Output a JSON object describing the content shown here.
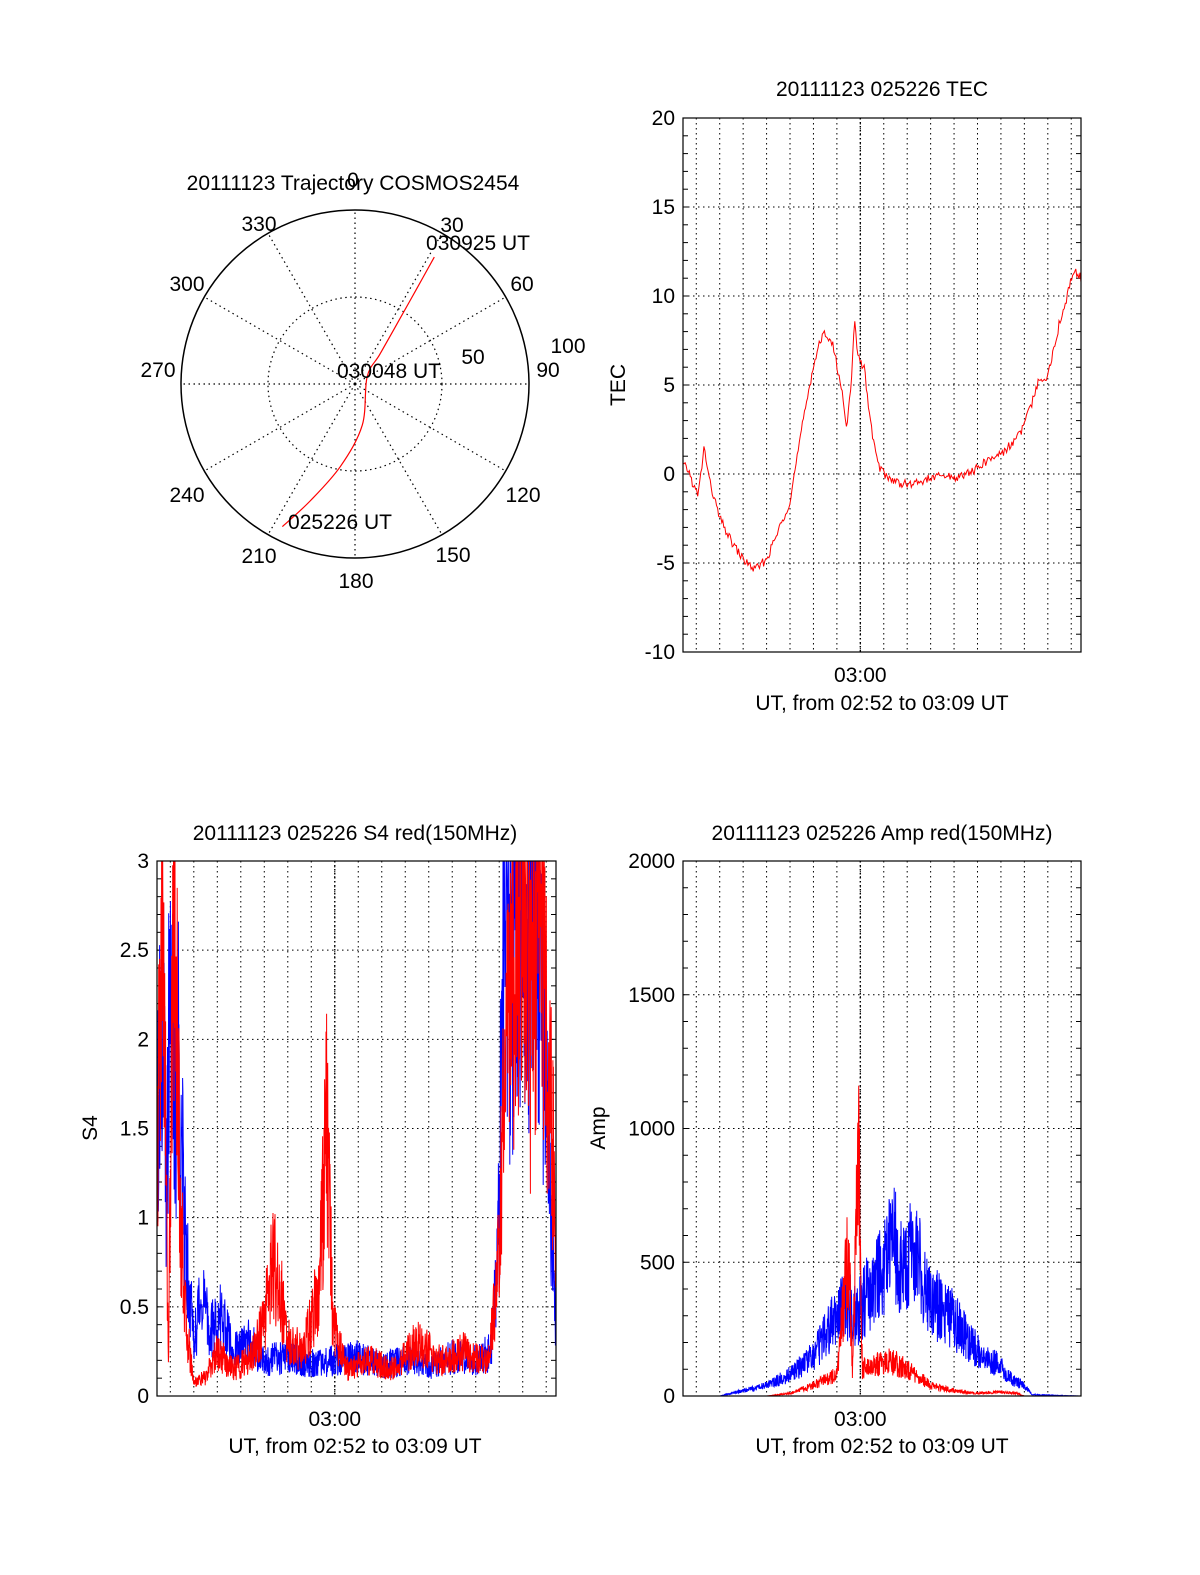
{
  "colors": {
    "red": "#ff0000",
    "blue": "#0000ff",
    "axis": "#000000",
    "grid": "#000000"
  },
  "chart_data": [
    {
      "id": "trajectory",
      "type": "polar",
      "title": "20111123 Trajectory COSMOS2454",
      "angle_labels": [
        {
          "angle": 0,
          "text": "0"
        },
        {
          "angle": 30,
          "text": "30"
        },
        {
          "angle": 60,
          "text": "60"
        },
        {
          "angle": 90,
          "text": "90"
        },
        {
          "angle": 120,
          "text": "120"
        },
        {
          "angle": 150,
          "text": "150"
        },
        {
          "angle": 180,
          "text": "180"
        },
        {
          "angle": 210,
          "text": "210"
        },
        {
          "angle": 240,
          "text": "240"
        },
        {
          "angle": 270,
          "text": "270"
        },
        {
          "angle": 300,
          "text": "300"
        },
        {
          "angle": 330,
          "text": "330"
        }
      ],
      "radius_max": 100,
      "radius_labels": [
        {
          "r": 50,
          "text": "50"
        },
        {
          "r": 100,
          "text": "100"
        }
      ],
      "grid": true,
      "track": [
        {
          "az": 207,
          "r": 92
        },
        {
          "az": 201,
          "r": 72
        },
        {
          "az": 190,
          "r": 48
        },
        {
          "az": 170,
          "r": 24
        },
        {
          "az": 60,
          "r": 8
        },
        {
          "az": 40,
          "r": 22
        },
        {
          "az": 35,
          "r": 42
        },
        {
          "az": 33,
          "r": 64
        },
        {
          "az": 32,
          "r": 86
        }
      ],
      "annotations": [
        {
          "text": "030925 UT",
          "az": 32,
          "r": 86
        },
        {
          "text": "030048 UT",
          "az": 90,
          "r": 0
        },
        {
          "text": "025226 UT",
          "az": 207,
          "r": 92
        }
      ]
    },
    {
      "id": "tec",
      "type": "line",
      "title": "20111123 025226 TEC",
      "ylabel": "TEC",
      "xlabel": "UT, from 02:52 to 03:09 UT",
      "x_range": [
        "02:52:26",
        "03:09:25"
      ],
      "ylim": [
        -10,
        20
      ],
      "yticks": [
        -10,
        -5,
        0,
        5,
        10,
        15,
        20
      ],
      "xticks": [
        {
          "at": "03:00:00",
          "label": "03:00"
        }
      ],
      "grid": true,
      "series": [
        {
          "color": "red",
          "points": [
            [
              "02:52:26",
              0.5
            ],
            [
              "02:52:40",
              0.2
            ],
            [
              "02:52:55",
              -0.8
            ],
            [
              "02:53:05",
              -1.2
            ],
            [
              "02:53:20",
              1.5
            ],
            [
              "02:53:35",
              -0.5
            ],
            [
              "02:54:00",
              -2.5
            ],
            [
              "02:54:30",
              -3.8
            ],
            [
              "02:55:00",
              -4.8
            ],
            [
              "02:55:30",
              -5.4
            ],
            [
              "02:56:00",
              -4.8
            ],
            [
              "02:56:30",
              -3.2
            ],
            [
              "02:57:00",
              -1.5
            ],
            [
              "02:57:30",
              2.5
            ],
            [
              "02:57:50",
              5.0
            ],
            [
              "02:58:10",
              7.0
            ],
            [
              "02:58:30",
              8.0
            ],
            [
              "02:58:50",
              7.2
            ],
            [
              "02:59:10",
              5.0
            ],
            [
              "02:59:25",
              2.8
            ],
            [
              "02:59:35",
              4.5
            ],
            [
              "02:59:45",
              8.5
            ],
            [
              "02:59:55",
              6.5
            ],
            [
              "03:00:10",
              6.0
            ],
            [
              "03:00:25",
              3.0
            ],
            [
              "03:00:45",
              0.5
            ],
            [
              "03:01:10",
              -0.2
            ],
            [
              "03:01:40",
              -0.5
            ],
            [
              "03:02:10",
              -0.6
            ],
            [
              "03:02:50",
              -0.3
            ],
            [
              "03:03:30",
              -0.1
            ],
            [
              "03:04:10",
              -0.2
            ],
            [
              "03:04:50",
              0.2
            ],
            [
              "03:05:30",
              0.8
            ],
            [
              "03:06:10",
              1.3
            ],
            [
              "03:06:50",
              2.3
            ],
            [
              "03:07:20",
              4.0
            ],
            [
              "03:07:40",
              5.5
            ],
            [
              "03:07:55",
              5.3
            ],
            [
              "03:08:10",
              6.5
            ],
            [
              "03:08:30",
              8.5
            ],
            [
              "03:08:50",
              10.0
            ],
            [
              "03:09:05",
              11.5
            ],
            [
              "03:09:25",
              11.0
            ]
          ]
        }
      ]
    },
    {
      "id": "s4",
      "type": "line",
      "title": "20111123 025226 S4 red(150MHz)",
      "ylabel": "S4",
      "xlabel": "UT, from 02:52 to 03:09 UT",
      "x_range": [
        "02:52:26",
        "03:09:25"
      ],
      "ylim": [
        0,
        3
      ],
      "yticks": [
        0,
        0.5,
        1,
        1.5,
        2,
        2.5,
        3
      ],
      "xticks": [
        {
          "at": "03:00:00",
          "label": "03:00"
        }
      ],
      "grid": true,
      "series": [
        {
          "color": "blue",
          "points": [
            [
              "02:52:26",
              1.6
            ],
            [
              "02:52:40",
              2.2
            ],
            [
              "02:52:50",
              1.2
            ],
            [
              "02:53:00",
              2.6
            ],
            [
              "02:53:10",
              1.5
            ],
            [
              "02:53:20",
              2.0
            ],
            [
              "02:53:35",
              1.0
            ],
            [
              "02:53:50",
              0.6
            ],
            [
              "02:54:00",
              0.3
            ],
            [
              "02:54:20",
              0.6
            ],
            [
              "02:54:40",
              0.35
            ],
            [
              "02:55:10",
              0.45
            ],
            [
              "02:55:40",
              0.25
            ],
            [
              "02:56:20",
              0.3
            ],
            [
              "02:57:00",
              0.2
            ],
            [
              "02:58:00",
              0.22
            ],
            [
              "02:59:00",
              0.18
            ],
            [
              "03:00:00",
              0.2
            ],
            [
              "03:01:00",
              0.22
            ],
            [
              "03:02:00",
              0.17
            ],
            [
              "03:03:00",
              0.2
            ],
            [
              "03:04:00",
              0.16
            ],
            [
              "03:05:00",
              0.22
            ],
            [
              "03:06:00",
              0.2
            ],
            [
              "03:06:40",
              0.25
            ],
            [
              "03:07:00",
              1.0
            ],
            [
              "03:07:10",
              3.0
            ],
            [
              "03:07:30",
              2.2
            ],
            [
              "03:07:50",
              3.0
            ],
            [
              "03:08:10",
              2.5
            ],
            [
              "03:08:30",
              3.0
            ],
            [
              "03:09:25",
              0.4
            ]
          ]
        },
        {
          "color": "red",
          "points": [
            [
              "02:52:26",
              1.2
            ],
            [
              "02:52:40",
              3.0
            ],
            [
              "02:52:55",
              0.2
            ],
            [
              "02:53:10",
              3.0
            ],
            [
              "02:53:25",
              1.1
            ],
            [
              "02:53:40",
              0.4
            ],
            [
              "02:54:00",
              0.08
            ],
            [
              "02:54:30",
              0.1
            ],
            [
              "02:55:00",
              0.25
            ],
            [
              "02:55:40",
              0.15
            ],
            [
              "02:56:20",
              0.2
            ],
            [
              "02:57:00",
              0.4
            ],
            [
              "02:57:20",
              0.8
            ],
            [
              "02:57:40",
              0.6
            ],
            [
              "02:58:00",
              0.3
            ],
            [
              "02:58:40",
              0.25
            ],
            [
              "02:59:20",
              0.6
            ],
            [
              "02:59:40",
              1.6
            ],
            [
              "02:59:55",
              0.4
            ],
            [
              "03:00:30",
              0.15
            ],
            [
              "03:01:30",
              0.2
            ],
            [
              "03:02:30",
              0.15
            ],
            [
              "03:03:30",
              0.3
            ],
            [
              "03:04:30",
              0.2
            ],
            [
              "03:05:30",
              0.25
            ],
            [
              "03:06:30",
              0.2
            ],
            [
              "03:06:55",
              0.6
            ],
            [
              "03:07:15",
              1.8
            ],
            [
              "03:07:40",
              2.5
            ],
            [
              "03:08:00",
              3.0
            ],
            [
              "03:08:20",
              2.0
            ],
            [
              "03:08:40",
              3.0
            ],
            [
              "03:09:25",
              1.0
            ]
          ]
        }
      ]
    },
    {
      "id": "amp",
      "type": "line",
      "title": "20111123 025226 Amp red(150MHz)",
      "ylabel": "Amp",
      "xlabel": "UT, from 02:52 to 03:09 UT",
      "x_range": [
        "02:52:26",
        "03:09:25"
      ],
      "ylim": [
        0,
        2000
      ],
      "yticks": [
        0,
        500,
        1000,
        1500,
        2000
      ],
      "xticks": [
        {
          "at": "03:00:00",
          "label": "03:00"
        }
      ],
      "grid": true,
      "series": [
        {
          "color": "blue",
          "points": [
            [
              "02:52:26",
              0
            ],
            [
              "02:54:00",
              0
            ],
            [
              "02:55:00",
              20
            ],
            [
              "02:56:00",
              40
            ],
            [
              "02:57:00",
              80
            ],
            [
              "02:58:00",
              150
            ],
            [
              "02:58:40",
              250
            ],
            [
              "02:59:20",
              350
            ],
            [
              "02:59:50",
              300
            ],
            [
              "03:00:20",
              380
            ],
            [
              "03:00:50",
              450
            ],
            [
              "03:01:20",
              600
            ],
            [
              "03:01:50",
              480
            ],
            [
              "03:02:20",
              550
            ],
            [
              "03:02:50",
              400
            ],
            [
              "03:03:20",
              330
            ],
            [
              "03:03:50",
              300
            ],
            [
              "03:04:30",
              220
            ],
            [
              "03:05:10",
              150
            ],
            [
              "03:05:50",
              120
            ],
            [
              "03:06:30",
              60
            ],
            [
              "03:07:00",
              40
            ],
            [
              "03:07:20",
              5
            ],
            [
              "03:09:25",
              0
            ]
          ]
        },
        {
          "color": "red",
          "points": [
            [
              "02:52:26",
              0
            ],
            [
              "02:56:00",
              0
            ],
            [
              "02:57:00",
              10
            ],
            [
              "02:58:00",
              40
            ],
            [
              "02:59:00",
              80
            ],
            [
              "02:59:30",
              550
            ],
            [
              "02:59:40",
              80
            ],
            [
              "02:59:55",
              1030
            ],
            [
              "03:00:05",
              100
            ],
            [
              "03:00:40",
              120
            ],
            [
              "03:01:20",
              130
            ],
            [
              "03:02:00",
              100
            ],
            [
              "03:03:00",
              40
            ],
            [
              "03:04:00",
              20
            ],
            [
              "03:05:00",
              10
            ],
            [
              "03:06:00",
              15
            ],
            [
              "03:06:40",
              10
            ],
            [
              "03:07:00",
              0
            ],
            [
              "03:09:25",
              0
            ]
          ]
        }
      ]
    }
  ]
}
